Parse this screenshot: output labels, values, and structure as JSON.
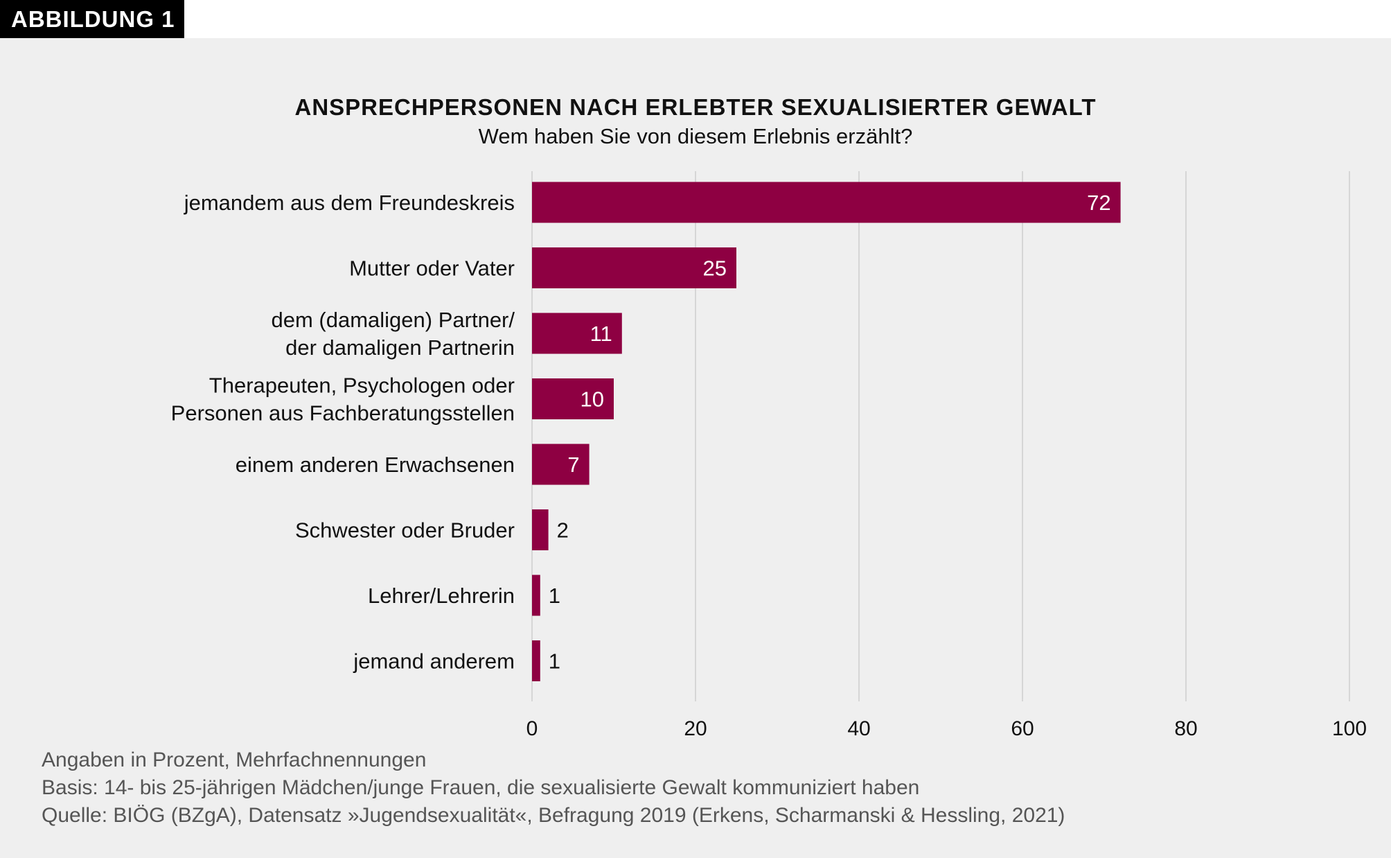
{
  "badge": "ABBILDUNG 1",
  "chart_data": {
    "type": "bar",
    "orientation": "horizontal",
    "title": "ANSPRECHPERSONEN NACH ERLEBTER SEXUALISIERTER GEWALT",
    "subtitle": "Wem haben Sie von diesem Erlebnis erzählt?",
    "categories": [
      [
        "jemandem aus dem Freundeskreis"
      ],
      [
        "Mutter oder Vater"
      ],
      [
        "dem (damaligen) Partner/",
        "der damaligen Partnerin"
      ],
      [
        "Therapeuten, Psychologen oder",
        "Personen aus Fachberatungsstellen"
      ],
      [
        "einem anderen Erwachsenen"
      ],
      [
        "Schwester oder Bruder"
      ],
      [
        "Lehrer/Lehrerin"
      ],
      [
        "jemand anderem"
      ]
    ],
    "values": [
      72,
      25,
      11,
      10,
      7,
      2,
      1,
      1
    ],
    "xlim": [
      0,
      100
    ],
    "xticks": [
      0,
      20,
      40,
      60,
      80,
      100
    ],
    "grid": true,
    "bar_color": "#8e0042",
    "label_color_inside": "#ffffff",
    "xlabel": "",
    "ylabel": ""
  },
  "footnotes": [
    "Angaben in Prozent, Mehrfachnennungen",
    "Basis: 14- bis 25-jährigen Mädchen/junge Frauen, die sexualisierte Gewalt kommuniziert haben",
    "Quelle: BIÖG (BZgA), Datensatz »Jugendsexualität«, Befragung 2019 (Erkens, Scharmanski & Hessling, 2021)"
  ]
}
